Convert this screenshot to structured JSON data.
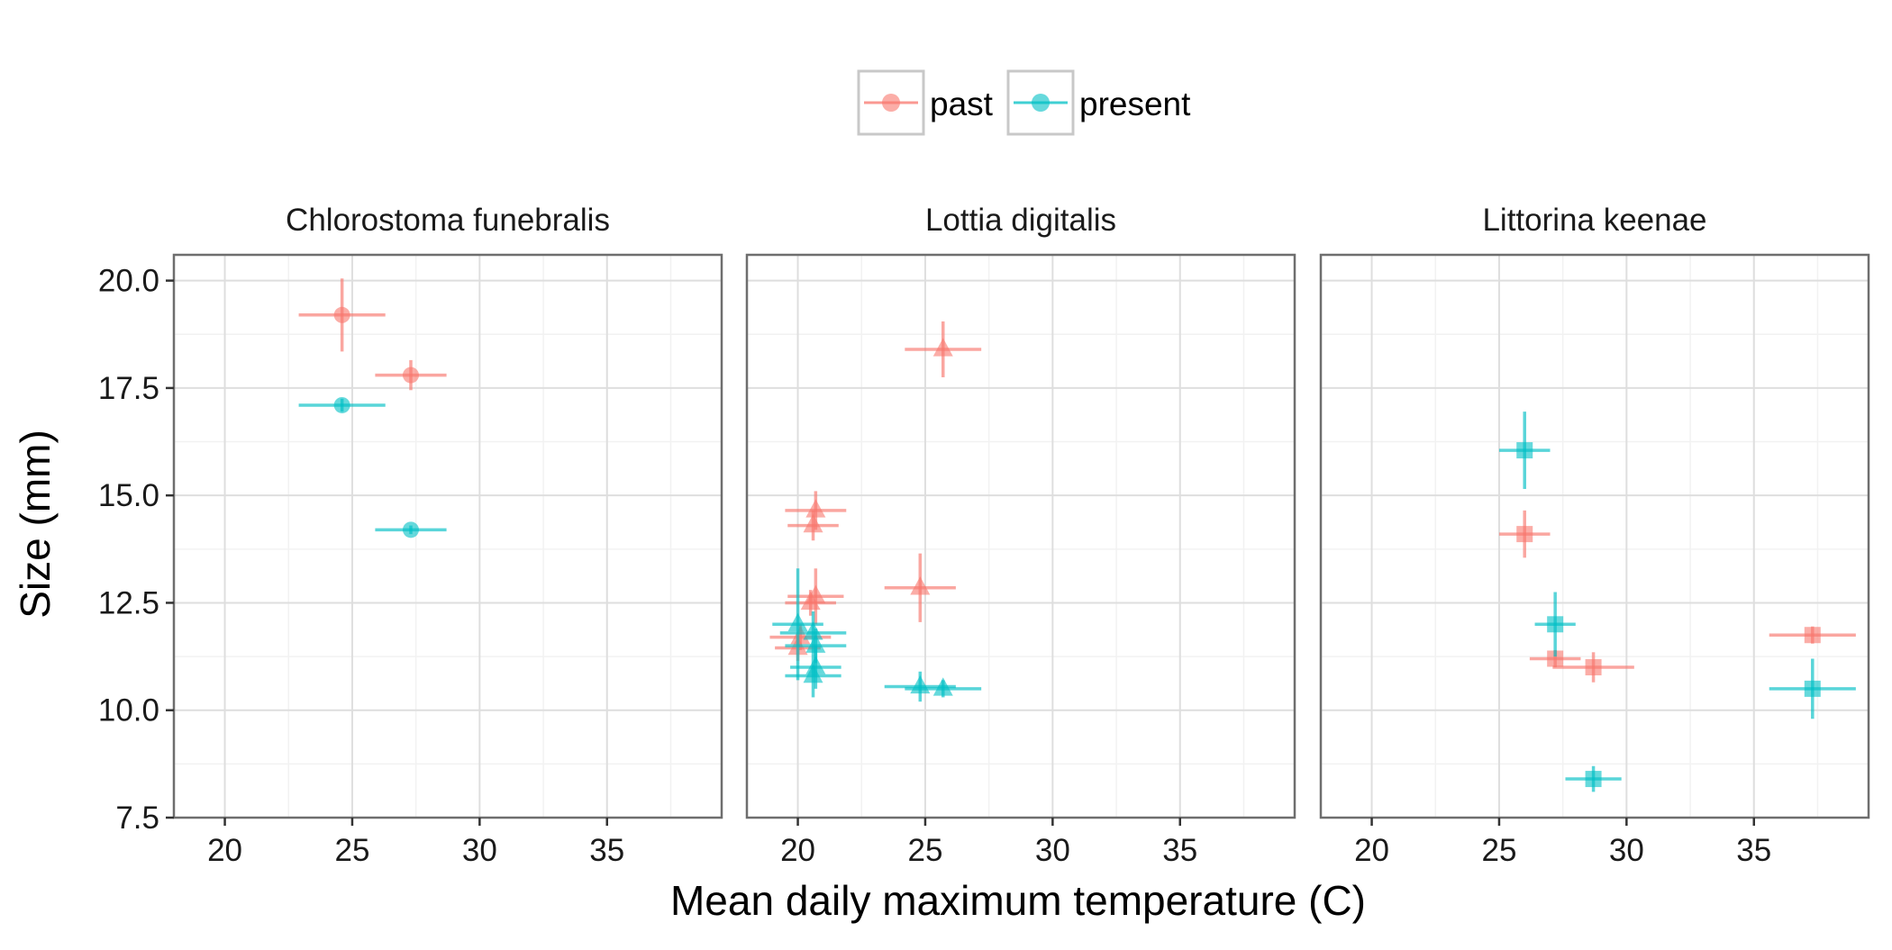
{
  "chart_data": {
    "type": "scatter",
    "xlabel": "Mean daily maximum temperature (C)",
    "ylabel": "Size (mm)",
    "xlim": [
      18,
      39.5
    ],
    "ylim": [
      7.5,
      20.6
    ],
    "x_ticks": [
      20,
      25,
      30,
      35
    ],
    "y_ticks": [
      7.5,
      10.0,
      12.5,
      15.0,
      17.5,
      20.0
    ],
    "y_tick_labels": [
      "7.5",
      "10.0",
      "12.5",
      "15.0",
      "17.5",
      "20.0"
    ],
    "grid": true,
    "legend_position": "top",
    "legend": [
      {
        "key": "past",
        "label": "past",
        "color": "#F8766D"
      },
      {
        "key": "present",
        "label": "present",
        "color": "#00BFC4"
      }
    ],
    "panels": [
      {
        "title": "Chlorostoma funebralis",
        "marker": "circle",
        "points": [
          {
            "group": "past",
            "x": 24.6,
            "y": 19.2,
            "x_err": 1.7,
            "y_err": 0.85
          },
          {
            "group": "past",
            "x": 27.3,
            "y": 17.8,
            "x_err": 1.4,
            "y_err": 0.35
          },
          {
            "group": "present",
            "x": 24.6,
            "y": 17.1,
            "x_err": 1.7,
            "y_err": 0.15
          },
          {
            "group": "present",
            "x": 27.3,
            "y": 14.2,
            "x_err": 1.4,
            "y_err": 0.1
          }
        ]
      },
      {
        "title": "Lottia digitalis",
        "marker": "triangle",
        "points": [
          {
            "group": "past",
            "x": 25.7,
            "y": 18.4,
            "x_err": 1.5,
            "y_err": 0.65
          },
          {
            "group": "past",
            "x": 20.7,
            "y": 14.65,
            "x_err": 1.2,
            "y_err": 0.45
          },
          {
            "group": "past",
            "x": 20.6,
            "y": 14.3,
            "x_err": 1.0,
            "y_err": 0.35
          },
          {
            "group": "past",
            "x": 24.8,
            "y": 12.85,
            "x_err": 1.4,
            "y_err": 0.8
          },
          {
            "group": "past",
            "x": 20.7,
            "y": 12.65,
            "x_err": 1.1,
            "y_err": 0.65
          },
          {
            "group": "past",
            "x": 20.5,
            "y": 12.5,
            "x_err": 1.0,
            "y_err": 0.3
          },
          {
            "group": "past",
            "x": 20.1,
            "y": 11.7,
            "x_err": 1.2,
            "y_err": 0.3
          },
          {
            "group": "past",
            "x": 20.0,
            "y": 11.45,
            "x_err": 0.9,
            "y_err": 0.3
          },
          {
            "group": "present",
            "x": 20.0,
            "y": 12.0,
            "x_err": 1.0,
            "y_err": 1.3
          },
          {
            "group": "present",
            "x": 20.6,
            "y": 11.8,
            "x_err": 1.3,
            "y_err": 0.5
          },
          {
            "group": "present",
            "x": 20.7,
            "y": 11.5,
            "x_err": 1.2,
            "y_err": 0.4
          },
          {
            "group": "present",
            "x": 20.7,
            "y": 11.0,
            "x_err": 1.0,
            "y_err": 0.5
          },
          {
            "group": "present",
            "x": 20.6,
            "y": 10.8,
            "x_err": 1.1,
            "y_err": 0.5
          },
          {
            "group": "present",
            "x": 24.8,
            "y": 10.55,
            "x_err": 1.4,
            "y_err": 0.35
          },
          {
            "group": "present",
            "x": 25.7,
            "y": 10.5,
            "x_err": 1.5,
            "y_err": 0.2
          }
        ]
      },
      {
        "title": "Littorina keenae",
        "marker": "square",
        "points": [
          {
            "group": "past",
            "x": 26.0,
            "y": 14.1,
            "x_err": 1.0,
            "y_err": 0.55
          },
          {
            "group": "past",
            "x": 27.2,
            "y": 11.2,
            "x_err": 1.0,
            "y_err": 0.2
          },
          {
            "group": "past",
            "x": 28.7,
            "y": 11.0,
            "x_err": 1.6,
            "y_err": 0.35
          },
          {
            "group": "past",
            "x": 37.3,
            "y": 11.75,
            "x_err": 1.7,
            "y_err": 0.2
          },
          {
            "group": "present",
            "x": 26.0,
            "y": 16.05,
            "x_err": 1.0,
            "y_err": 0.9
          },
          {
            "group": "present",
            "x": 27.2,
            "y": 12.0,
            "x_err": 0.8,
            "y_err": 0.75
          },
          {
            "group": "present",
            "x": 28.7,
            "y": 8.4,
            "x_err": 1.1,
            "y_err": 0.3
          },
          {
            "group": "present",
            "x": 37.3,
            "y": 10.5,
            "x_err": 1.7,
            "y_err": 0.7
          }
        ]
      }
    ]
  }
}
